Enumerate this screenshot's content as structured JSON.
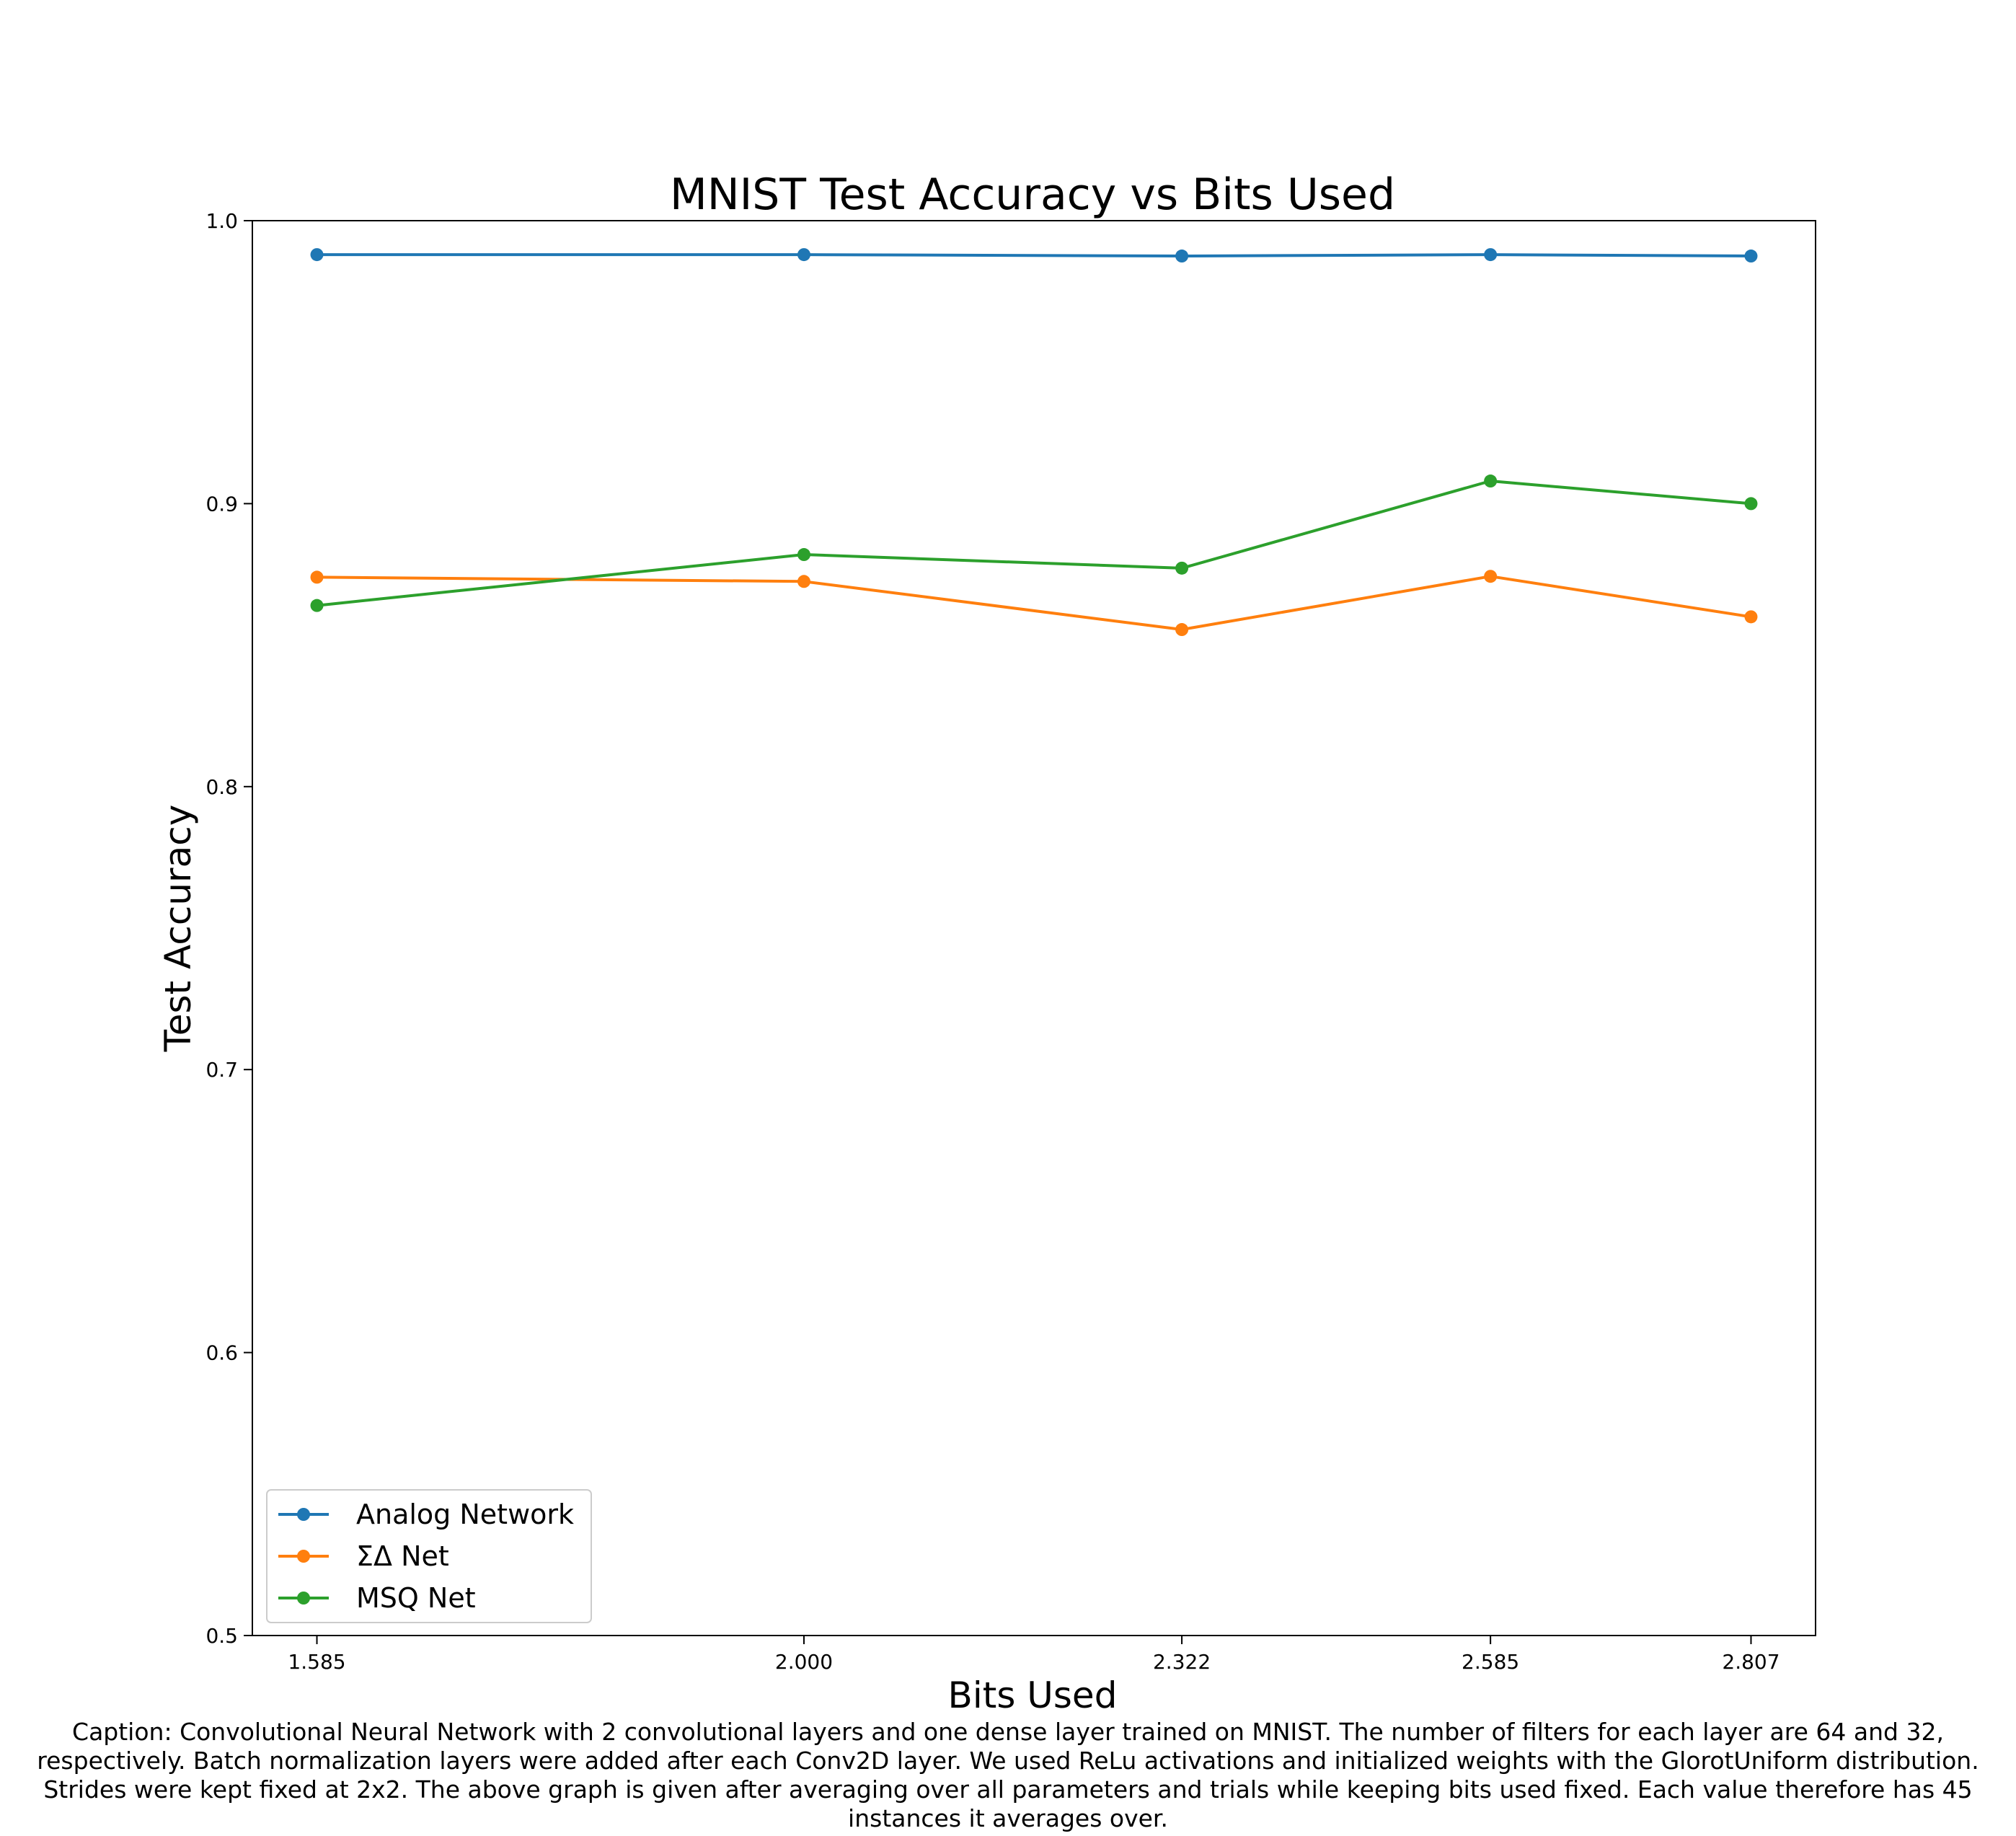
{
  "chart_data": {
    "type": "line",
    "title": "MNIST Test Accuracy vs Bits Used",
    "xlabel": "Bits Used",
    "ylabel": "Test Accuracy",
    "x": [
      1.585,
      2.0,
      2.322,
      2.585,
      2.807
    ],
    "xtick_labels": [
      "1.585",
      "2.000",
      "2.322",
      "2.585",
      "2.807"
    ],
    "ylim": [
      0.5,
      1.0
    ],
    "yticks": [
      0.5,
      0.6,
      0.7,
      0.8,
      0.9,
      1.0
    ],
    "ytick_labels": [
      "0.5",
      "0.6",
      "0.7",
      "0.8",
      "0.9",
      "1.0"
    ],
    "grid": false,
    "legend_position": "lower-left",
    "series": [
      {
        "name": "Analog Network",
        "color": "#1f77b4",
        "values": [
          0.988,
          0.988,
          0.9875,
          0.988,
          0.9875
        ]
      },
      {
        "name": "ΣΔ Net",
        "color": "#ff7f0e",
        "values": [
          0.874,
          0.8725,
          0.8555,
          0.8743,
          0.86
        ]
      },
      {
        "name": "MSQ Net",
        "color": "#2ca02c",
        "values": [
          0.864,
          0.882,
          0.8772,
          0.908,
          0.9
        ]
      }
    ]
  },
  "caption": [
    "Caption: Convolutional Neural Network with 2 convolutional layers and one dense layer trained on MNIST. The number of filters for each layer are 64 and 32,",
    "respectively. Batch normalization layers were added after each Conv2D layer. We used ReLu activations and initialized weights with the GlorotUniform distribution.",
    "Strides were kept fixed at 2x2.  The above graph is given after averaging over all parameters and trials while keeping bits used fixed. Each value therefore has 45",
    "instances it averages over."
  ]
}
